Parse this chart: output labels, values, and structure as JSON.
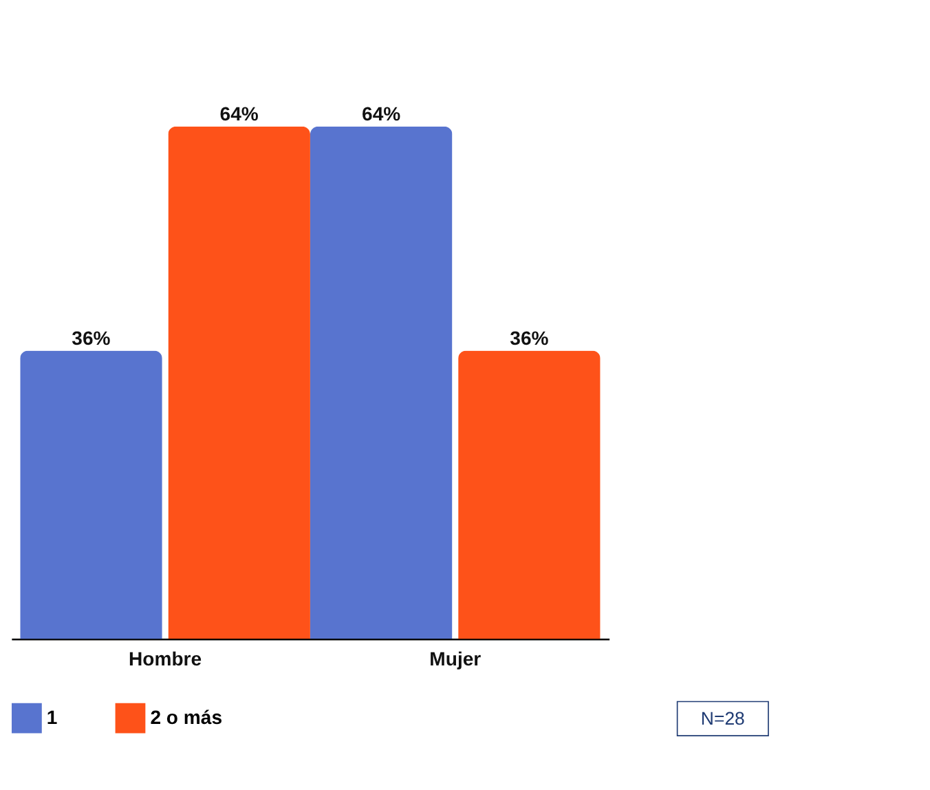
{
  "chart_data": {
    "type": "bar",
    "categories": [
      "Hombre",
      "Mujer"
    ],
    "series": [
      {
        "name": "1",
        "color": "#5874cf",
        "values": [
          36,
          64
        ],
        "value_labels": [
          "36%",
          "64%"
        ]
      },
      {
        "name": "2 o más",
        "color": "#fe5219",
        "values": [
          64,
          36
        ],
        "value_labels": [
          "64%",
          "36%"
        ]
      }
    ],
    "legend": "bottom",
    "grid": false,
    "annotations": [
      "N=28"
    ]
  }
}
